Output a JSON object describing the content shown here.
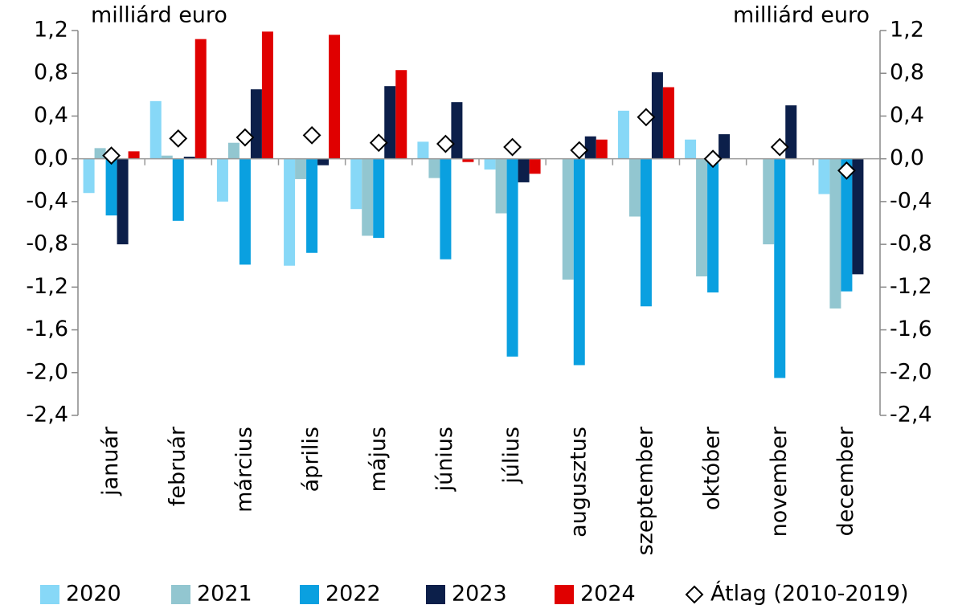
{
  "chart_data": {
    "type": "bar",
    "y_label": "milliárd euro",
    "y2_label": "milliárd euro",
    "categories": [
      "január",
      "február",
      "március",
      "április",
      "május",
      "június",
      "július",
      "augusztus",
      "szeptember",
      "október",
      "november",
      "december"
    ],
    "series": [
      {
        "name": "2020",
        "color": "#87d8f7",
        "values": [
          -0.32,
          0.54,
          -0.4,
          -1.0,
          -0.47,
          0.16,
          -0.1,
          0.0,
          0.45,
          0.18,
          0.0,
          -0.33
        ]
      },
      {
        "name": "2021",
        "color": "#92c6d0",
        "values": [
          0.1,
          0.03,
          0.15,
          -0.19,
          -0.72,
          -0.18,
          -0.51,
          -1.13,
          -0.54,
          -1.1,
          -0.8,
          -1.4
        ]
      },
      {
        "name": "2022",
        "color": "#0aa0e0",
        "values": [
          -0.53,
          -0.58,
          -0.99,
          -0.88,
          -0.74,
          -0.94,
          -1.85,
          -1.93,
          -1.38,
          -1.25,
          -2.05,
          -1.24
        ]
      },
      {
        "name": "2023",
        "color": "#0c1f4a",
        "values": [
          -0.8,
          0.02,
          0.65,
          -0.06,
          0.68,
          0.53,
          -0.22,
          0.21,
          0.81,
          0.23,
          0.5,
          -1.08
        ]
      },
      {
        "name": "2024",
        "color": "#e00000",
        "values": [
          0.07,
          1.12,
          1.19,
          1.16,
          0.83,
          -0.03,
          -0.14,
          0.18,
          0.67,
          null,
          null,
          null
        ]
      },
      {
        "name": "Átlag (2010-2019)",
        "kind": "marker",
        "color": "#ffffff",
        "values": [
          0.03,
          0.19,
          0.2,
          0.22,
          0.15,
          0.14,
          0.11,
          0.08,
          0.39,
          0.0,
          0.11,
          -0.11
        ]
      }
    ],
    "ylim": [
      -2.4,
      1.2
    ],
    "yticks": [
      {
        "value": -2.4,
        "label": "-2,4"
      },
      {
        "value": -2.0,
        "label": "-2,0"
      },
      {
        "value": -1.6,
        "label": "-1,6"
      },
      {
        "value": -1.2,
        "label": "-1,2"
      },
      {
        "value": -0.8,
        "label": "-0,8"
      },
      {
        "value": -0.4,
        "label": "-0,4"
      },
      {
        "value": 0,
        "label": "0,0"
      },
      {
        "value": 0.4,
        "label": "0,4"
      },
      {
        "value": 0.8,
        "label": "0,8"
      },
      {
        "value": 1.2,
        "label": "1,2"
      }
    ],
    "y2lim": [
      -2.4,
      1.2
    ],
    "y2ticks": [
      {
        "value": -2.4,
        "label": "-2,4"
      },
      {
        "value": -2.0,
        "label": "-2,0"
      },
      {
        "value": -1.6,
        "label": "-1,6"
      },
      {
        "value": -1.2,
        "label": "-1,2"
      },
      {
        "value": -0.8,
        "label": "-0,8"
      },
      {
        "value": -0.4,
        "label": "-0,4"
      },
      {
        "value": 0,
        "label": "0,0"
      },
      {
        "value": 0.4,
        "label": "0,4"
      },
      {
        "value": 0.8,
        "label": "0,8"
      },
      {
        "value": 1.2,
        "label": "1,2"
      }
    ],
    "legend": "bottom"
  }
}
